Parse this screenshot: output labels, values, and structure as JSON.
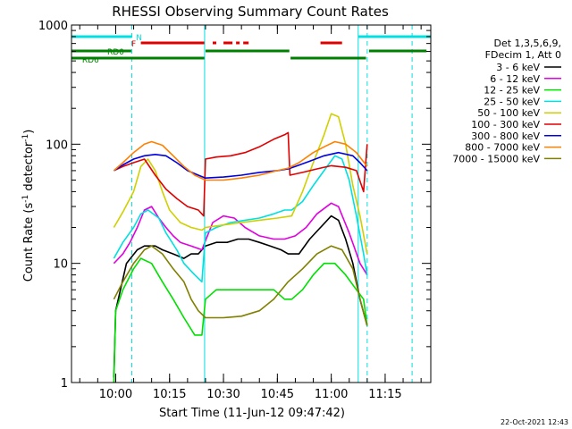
{
  "chart_data": {
    "type": "line",
    "title": "RHESSI Observing Summary Count Rates",
    "xlabel": "Start Time (11-Jun-12 09:47:42)",
    "ylabel_main": "Count Rate (s",
    "ylabel_sup1": "-1",
    "ylabel_mid": " detector",
    "ylabel_sup2": "-1",
    "ylabel_end": ")",
    "y_scale": "log",
    "ylim": [
      1,
      1000
    ],
    "x_range_minutes": [
      "09:47:42",
      "11:27:42"
    ],
    "x_ticks": [
      {
        "t": "10:00",
        "label": "10:00"
      },
      {
        "t": "10:15",
        "label": "10:15"
      },
      {
        "t": "10:30",
        "label": "10:30"
      },
      {
        "t": "10:45",
        "label": "10:45"
      },
      {
        "t": "11:00",
        "label": "11:00"
      },
      {
        "t": "11:15",
        "label": "11:15"
      }
    ],
    "y_ticks": [
      {
        "v": 1,
        "label": "1"
      },
      {
        "v": 10,
        "label": "10"
      },
      {
        "v": 100,
        "label": "100"
      },
      {
        "v": 1000,
        "label": "1000"
      }
    ],
    "legend_header": [
      "Det 1,3,5,6,9,",
      "FDecim 1, Att 0"
    ],
    "legend_position": "right",
    "series": [
      {
        "name": "3 - 6 keV",
        "color": "#000000",
        "points": [
          [
            "09:59:30",
            1.1
          ],
          [
            "10:00:00",
            4
          ],
          [
            "10:03:00",
            10
          ],
          [
            "10:06:00",
            13
          ],
          [
            "10:08:00",
            14
          ],
          [
            "10:11:00",
            14
          ],
          [
            "10:13:00",
            13
          ],
          [
            "10:16:00",
            12
          ],
          [
            "10:19:00",
            11
          ],
          [
            "10:21:00",
            12
          ],
          [
            "10:23:00",
            12
          ],
          [
            "10:25:00",
            14
          ],
          [
            "10:28:00",
            15
          ],
          [
            "10:31:00",
            15
          ],
          [
            "10:34:00",
            16
          ],
          [
            "10:37:00",
            16
          ],
          [
            "10:40:00",
            15
          ],
          [
            "10:43:00",
            14
          ],
          [
            "10:46:00",
            13
          ],
          [
            "10:48:00",
            12
          ],
          [
            "10:51:00",
            12
          ],
          [
            "10:54:00",
            16
          ],
          [
            "10:57:00",
            20
          ],
          [
            "11:00:00",
            25
          ],
          [
            "11:02:00",
            23
          ],
          [
            "11:04:00",
            16
          ],
          [
            "11:06:00",
            10
          ],
          [
            "11:08:00",
            5
          ],
          [
            "11:10:00",
            3
          ]
        ]
      },
      {
        "name": "6 - 12 keV",
        "color": "#e000e0",
        "points": [
          [
            "09:59:30",
            10
          ],
          [
            "10:02:00",
            12
          ],
          [
            "10:04:00",
            15
          ],
          [
            "10:06:00",
            20
          ],
          [
            "10:08:00",
            28
          ],
          [
            "10:10:00",
            30
          ],
          [
            "10:12:00",
            24
          ],
          [
            "10:14:00",
            20
          ],
          [
            "10:16:00",
            17
          ],
          [
            "10:18:00",
            15
          ],
          [
            "10:21:00",
            14
          ],
          [
            "10:24:00",
            13
          ],
          [
            "10:27:00",
            22
          ],
          [
            "10:30:00",
            25
          ],
          [
            "10:33:00",
            24
          ],
          [
            "10:36:00",
            20
          ],
          [
            "10:40:00",
            17
          ],
          [
            "10:44:00",
            16
          ],
          [
            "10:47:00",
            16
          ],
          [
            "10:50:00",
            17
          ],
          [
            "10:53:00",
            20
          ],
          [
            "10:56:00",
            26
          ],
          [
            "11:00:00",
            32
          ],
          [
            "11:02:00",
            30
          ],
          [
            "11:05:00",
            18
          ],
          [
            "11:08:00",
            10
          ],
          [
            "11:10:00",
            8
          ]
        ]
      },
      {
        "name": "12 - 25 keV",
        "color": "#00e000",
        "points": [
          [
            "09:59:30",
            1
          ],
          [
            "10:00:00",
            4
          ],
          [
            "10:02:00",
            6
          ],
          [
            "10:05:00",
            9
          ],
          [
            "10:07:00",
            11
          ],
          [
            "10:10:00",
            10
          ],
          [
            "10:13:00",
            7
          ],
          [
            "10:16:00",
            5
          ],
          [
            "10:19:00",
            3.5
          ],
          [
            "10:22:00",
            2.5
          ],
          [
            "10:24:00",
            2.5
          ],
          [
            "10:25:00",
            5
          ],
          [
            "10:28:00",
            6
          ],
          [
            "10:32:00",
            6
          ],
          [
            "10:36:00",
            6
          ],
          [
            "10:40:00",
            6
          ],
          [
            "10:44:00",
            6
          ],
          [
            "10:47:00",
            5
          ],
          [
            "10:49:00",
            5
          ],
          [
            "10:52:00",
            6
          ],
          [
            "10:55:00",
            8
          ],
          [
            "10:58:00",
            10
          ],
          [
            "11:01:00",
            10
          ],
          [
            "11:04:00",
            8
          ],
          [
            "11:07:00",
            6
          ],
          [
            "11:09:00",
            5
          ],
          [
            "11:10:00",
            3
          ]
        ]
      },
      {
        "name": "25 - 50 keV",
        "color": "#00e0e0",
        "points": [
          [
            "09:59:30",
            11
          ],
          [
            "10:02:00",
            15
          ],
          [
            "10:05:00",
            20
          ],
          [
            "10:07:00",
            26
          ],
          [
            "10:09:00",
            28
          ],
          [
            "10:12:00",
            24
          ],
          [
            "10:14:00",
            18
          ],
          [
            "10:17:00",
            13
          ],
          [
            "10:19:00",
            10
          ],
          [
            "10:22:00",
            8
          ],
          [
            "10:24:00",
            7
          ],
          [
            "10:25:00",
            18
          ],
          [
            "10:28:00",
            20
          ],
          [
            "10:32:00",
            22
          ],
          [
            "10:36:00",
            23
          ],
          [
            "10:40:00",
            24
          ],
          [
            "10:44:00",
            26
          ],
          [
            "10:47:00",
            28
          ],
          [
            "10:49:00",
            28
          ],
          [
            "10:52:00",
            33
          ],
          [
            "10:55:00",
            45
          ],
          [
            "10:58:00",
            60
          ],
          [
            "11:01:00",
            80
          ],
          [
            "11:03:00",
            75
          ],
          [
            "11:05:00",
            50
          ],
          [
            "11:07:00",
            25
          ],
          [
            "11:09:00",
            12
          ],
          [
            "11:10:00",
            8
          ]
        ]
      },
      {
        "name": "50 - 100 keV",
        "color": "#d0d000",
        "points": [
          [
            "09:59:30",
            20
          ],
          [
            "10:02:00",
            27
          ],
          [
            "10:05:00",
            40
          ],
          [
            "10:07:00",
            65
          ],
          [
            "10:09:00",
            75
          ],
          [
            "10:11:00",
            60
          ],
          [
            "10:13:00",
            40
          ],
          [
            "10:15:00",
            28
          ],
          [
            "10:18:00",
            22
          ],
          [
            "10:21:00",
            20
          ],
          [
            "10:24:00",
            19
          ],
          [
            "10:25:00",
            20
          ],
          [
            "10:30:00",
            21
          ],
          [
            "10:35:00",
            22
          ],
          [
            "10:40:00",
            23
          ],
          [
            "10:45:00",
            24
          ],
          [
            "10:49:00",
            25
          ],
          [
            "10:52:00",
            40
          ],
          [
            "10:55:00",
            70
          ],
          [
            "10:58:00",
            120
          ],
          [
            "11:00:00",
            180
          ],
          [
            "11:02:00",
            170
          ],
          [
            "11:04:00",
            100
          ],
          [
            "11:06:00",
            45
          ],
          [
            "11:08:00",
            25
          ],
          [
            "11:10:00",
            12
          ]
        ]
      },
      {
        "name": "100 - 300 keV",
        "color": "#e00000",
        "points": [
          [
            "09:59:30",
            60
          ],
          [
            "10:02:00",
            65
          ],
          [
            "10:05:00",
            70
          ],
          [
            "10:08:00",
            75
          ],
          [
            "10:11:00",
            55
          ],
          [
            "10:14:00",
            42
          ],
          [
            "10:17:00",
            35
          ],
          [
            "10:20:00",
            30
          ],
          [
            "10:23:00",
            28
          ],
          [
            "10:24:30",
            25
          ],
          [
            "10:25:00",
            75
          ],
          [
            "10:28:00",
            78
          ],
          [
            "10:32:00",
            80
          ],
          [
            "10:36:00",
            85
          ],
          [
            "10:40:00",
            95
          ],
          [
            "10:44:00",
            110
          ],
          [
            "10:47:00",
            120
          ],
          [
            "10:48:00",
            125
          ],
          [
            "10:48:30",
            55
          ],
          [
            "10:52:00",
            58
          ],
          [
            "10:56:00",
            62
          ],
          [
            "11:00:00",
            66
          ],
          [
            "11:04:00",
            64
          ],
          [
            "11:07:00",
            60
          ],
          [
            "11:09:00",
            40
          ],
          [
            "11:10:00",
            100
          ]
        ]
      },
      {
        "name": "300 - 800 keV",
        "color": "#0000e0",
        "points": [
          [
            "09:59:30",
            60
          ],
          [
            "10:02:00",
            67
          ],
          [
            "10:05:00",
            75
          ],
          [
            "10:08:00",
            80
          ],
          [
            "10:11:00",
            82
          ],
          [
            "10:14:00",
            80
          ],
          [
            "10:17:00",
            70
          ],
          [
            "10:20:00",
            60
          ],
          [
            "10:23:00",
            55
          ],
          [
            "10:25:00",
            52
          ],
          [
            "10:30:00",
            53
          ],
          [
            "10:35:00",
            55
          ],
          [
            "10:40:00",
            58
          ],
          [
            "10:45:00",
            60
          ],
          [
            "10:48:00",
            62
          ],
          [
            "10:50:00",
            65
          ],
          [
            "10:54:00",
            72
          ],
          [
            "10:58:00",
            80
          ],
          [
            "11:02:00",
            85
          ],
          [
            "11:06:00",
            80
          ],
          [
            "11:08:00",
            70
          ],
          [
            "11:10:00",
            60
          ]
        ]
      },
      {
        "name": "800 - 7000 keV",
        "color": "#ff8000",
        "points": [
          [
            "09:59:30",
            60
          ],
          [
            "10:02:00",
            70
          ],
          [
            "10:05:00",
            85
          ],
          [
            "10:08:00",
            100
          ],
          [
            "10:10:00",
            105
          ],
          [
            "10:13:00",
            98
          ],
          [
            "10:16:00",
            80
          ],
          [
            "10:19:00",
            65
          ],
          [
            "10:22:00",
            55
          ],
          [
            "10:25:00",
            50
          ],
          [
            "10:30:00",
            50
          ],
          [
            "10:35:00",
            52
          ],
          [
            "10:40:00",
            55
          ],
          [
            "10:45:00",
            60
          ],
          [
            "10:48:00",
            63
          ],
          [
            "10:51:00",
            70
          ],
          [
            "10:55:00",
            85
          ],
          [
            "10:58:00",
            95
          ],
          [
            "11:01:00",
            105
          ],
          [
            "11:04:00",
            100
          ],
          [
            "11:07:00",
            85
          ],
          [
            "11:10:00",
            65
          ]
        ]
      },
      {
        "name": "7000 - 15000 keV",
        "color": "#808000",
        "points": [
          [
            "09:59:30",
            5
          ],
          [
            "10:02:00",
            7
          ],
          [
            "10:05:00",
            10
          ],
          [
            "10:08:00",
            13
          ],
          [
            "10:10:00",
            14
          ],
          [
            "10:13:00",
            12
          ],
          [
            "10:16:00",
            9
          ],
          [
            "10:19:00",
            7
          ],
          [
            "10:21:00",
            5
          ],
          [
            "10:23:00",
            4
          ],
          [
            "10:25:00",
            3.5
          ],
          [
            "10:30:00",
            3.5
          ],
          [
            "10:35:00",
            3.6
          ],
          [
            "10:40:00",
            4
          ],
          [
            "10:44:00",
            5
          ],
          [
            "10:48:00",
            7
          ],
          [
            "10:52:00",
            9
          ],
          [
            "10:56:00",
            12
          ],
          [
            "11:00:00",
            14
          ],
          [
            "11:03:00",
            13
          ],
          [
            "11:06:00",
            9
          ],
          [
            "11:08:00",
            5
          ],
          [
            "11:10:00",
            3
          ]
        ]
      }
    ],
    "vertical_lines": [
      {
        "t": "09:47:42",
        "style": "solid",
        "color": "#00e0e0"
      },
      {
        "t": "10:04:30",
        "style": "dashed",
        "color": "#00e0e0"
      },
      {
        "t": "10:24:45",
        "style": "solid",
        "color": "#00e0e0"
      },
      {
        "t": "11:07:30",
        "style": "solid",
        "color": "#00e0e0"
      },
      {
        "t": "11:10:00",
        "style": "dashed",
        "color": "#00e0e0"
      },
      {
        "t": "11:22:30",
        "style": "dashed",
        "color": "#00e0e0"
      }
    ],
    "status_bars": [
      {
        "label": "N",
        "color": "#00e0e0",
        "level": 0,
        "segments": [
          [
            "09:47:42",
            "10:04:30"
          ],
          [
            "11:07:30",
            "11:27:42"
          ]
        ]
      },
      {
        "label": "F",
        "color": "#e00000",
        "level": 1,
        "segments": [
          [
            "10:07:00",
            "10:24:40"
          ],
          [
            "10:27:00",
            "10:28:00"
          ],
          [
            "10:30:00",
            "10:32:30"
          ],
          [
            "10:33:30",
            "10:34:30"
          ],
          [
            "10:35:30",
            "10:37:00"
          ],
          [
            "10:57:00",
            "11:03:00"
          ]
        ]
      },
      {
        "label": "RD0",
        "color": "#008000",
        "level": 2,
        "segments": [
          [
            "09:47:42",
            "10:04:20"
          ],
          [
            "10:25:00",
            "10:48:20"
          ],
          [
            "11:10:30",
            "11:26:30"
          ]
        ]
      },
      {
        "label": "RD6",
        "color": "#008000",
        "level": 3,
        "segments": [
          [
            "09:47:42",
            "10:24:40"
          ],
          [
            "10:48:40",
            "11:09:40"
          ]
        ]
      }
    ]
  },
  "timestamp": "22-Oct-2021 12:43"
}
